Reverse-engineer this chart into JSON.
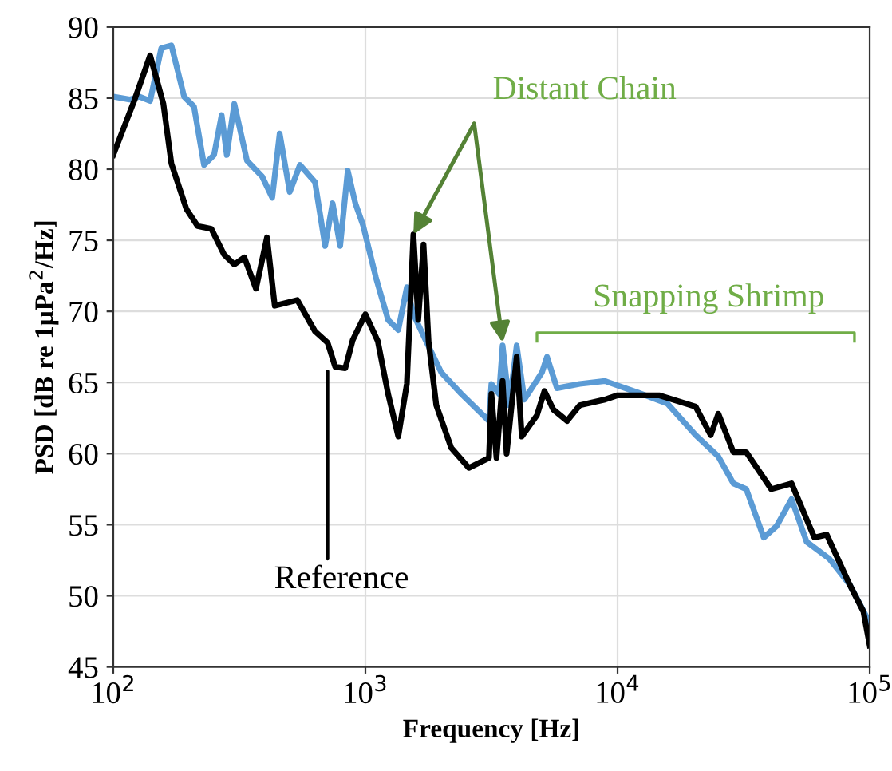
{
  "chart_data": {
    "type": "line",
    "xlabel": "Frequency [Hz]",
    "ylabel": "PSD [dB re 1μPa$^{2}$/Hz]",
    "log": "x",
    "grid": true,
    "legend": false,
    "marker": "none",
    "line_style": "solid",
    "xlim": [
      100,
      100000
    ],
    "xticks": [
      {
        "value": 100,
        "label": "10$^{2}$"
      },
      {
        "value": 1000,
        "label": "10$^{3}$"
      },
      {
        "value": 10000,
        "label": "10$^{4}$"
      },
      {
        "value": 100000,
        "label": "10$^{5}$"
      }
    ],
    "ylim": [
      45,
      90
    ],
    "yticks": [
      45,
      50,
      55,
      60,
      65,
      70,
      75,
      80,
      85,
      90
    ],
    "series": [
      {
        "color": "#5b9bd5",
        "x": [
          100,
          116,
          127,
          140,
          155,
          170,
          191,
          209,
          229,
          251,
          269,
          282,
          302,
          339,
          389,
          427,
          457,
          501,
          550,
          631,
          692,
          741,
          794,
          851,
          912,
          977,
          1100,
          1230,
          1350,
          1460,
          1550,
          1740,
          2000,
          2400,
          3090,
          3160,
          3390,
          3500,
          3720,
          3980,
          4270,
          5010,
          5250,
          5750,
          7080,
          8910,
          12000,
          15800,
          20400,
          25100,
          28800,
          32400,
          38000,
          42700,
          49000,
          56200,
          69200,
          83200,
          100000
        ],
        "values": [
          85.1,
          84.9,
          85.1,
          84.8,
          88.5,
          88.7,
          85.1,
          84.4,
          80.3,
          81,
          83.8,
          81,
          84.6,
          80.6,
          79.5,
          78,
          82.5,
          78.4,
          80.3,
          79.1,
          74.6,
          77.6,
          74.6,
          79.9,
          77.6,
          76.1,
          72.4,
          69.4,
          68.7,
          71.7,
          69.8,
          67.9,
          65.7,
          64.2,
          62.3,
          64.9,
          64.2,
          67.6,
          63.4,
          67.6,
          63.8,
          65.7,
          66.8,
          64.6,
          64.9,
          65.1,
          64.3,
          63.5,
          61.3,
          59.8,
          57.9,
          57.5,
          54.1,
          54.9,
          56.8,
          53.8,
          52.6,
          50.8,
          48.1
        ]
      },
      {
        "name": "Reference",
        "color": "#000000",
        "x": [
          100,
          121,
          140,
          158,
          170,
          195,
          216,
          245,
          275,
          302,
          331,
          368,
          407,
          437,
          537,
          631,
          708,
          759,
          832,
          891,
          1000,
          1120,
          1230,
          1350,
          1460,
          1550,
          1620,
          1700,
          1780,
          1910,
          2190,
          2570,
          3090,
          3160,
          3310,
          3500,
          3630,
          3980,
          4170,
          4790,
          5130,
          5560,
          6310,
          7080,
          8910,
          10000,
          14600,
          20400,
          23400,
          25100,
          28800,
          32400,
          40700,
          49000,
          60300,
          67600,
          83200,
          94400,
          100000
        ],
        "values": [
          81,
          84.8,
          88,
          84.6,
          80.4,
          77.2,
          76,
          75.8,
          74,
          73.3,
          73.8,
          71.6,
          75.2,
          70.4,
          70.8,
          68.6,
          67.8,
          66.1,
          66,
          68,
          69.8,
          67.9,
          64.2,
          61.2,
          64.9,
          75.4,
          69.4,
          74.7,
          67.9,
          63.4,
          60.4,
          59,
          59.7,
          64.2,
          59.7,
          65.1,
          60,
          66.8,
          61.2,
          62.7,
          64.4,
          63.1,
          62.3,
          63.4,
          63.8,
          64.1,
          64.1,
          63.3,
          61.3,
          62.8,
          60.1,
          60.1,
          57.5,
          57.9,
          54.1,
          54.3,
          50.8,
          48.9,
          46.5
        ]
      }
    ],
    "annotations": [
      {
        "text": "Distant Chain",
        "x": 1550,
        "y": 75.4
      },
      "Snapping Shrimp"
    ]
  }
}
